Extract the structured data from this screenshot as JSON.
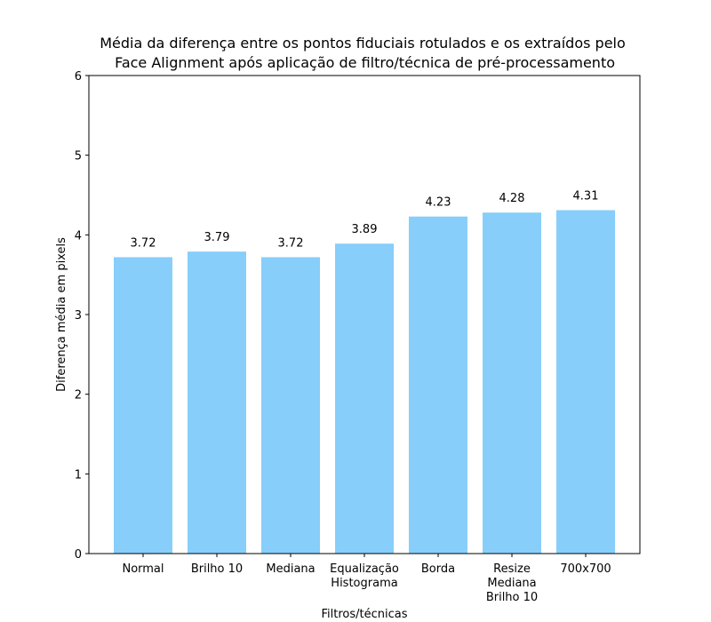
{
  "chart_data": {
    "type": "bar",
    "title_lines": [
      "Média da diferença entre os pontos fiduciais rotulados e os extraídos pelo",
      " Face Alignment após aplicação de filtro/técnica de pré-processamento"
    ],
    "xlabel": "Filtros/técnicas",
    "ylabel": "Diferença média em pixels",
    "categories": [
      [
        "Normal"
      ],
      [
        "Brilho 10"
      ],
      [
        "Mediana"
      ],
      [
        "Equalização",
        "Histograma"
      ],
      [
        "Borda"
      ],
      [
        "Resize",
        "Mediana",
        "Brilho 10"
      ],
      [
        "700x700"
      ]
    ],
    "values": [
      3.72,
      3.79,
      3.72,
      3.89,
      4.23,
      4.28,
      4.31
    ],
    "value_labels": [
      "3.72",
      "3.79",
      "3.72",
      "3.89",
      "4.23",
      "4.28",
      "4.31"
    ],
    "ylim": [
      0,
      6
    ],
    "yticks": [
      "0",
      "1",
      "2",
      "3",
      "4",
      "5",
      "6"
    ],
    "bar_color": "#87CEFA",
    "grid": false,
    "legend": false
  }
}
